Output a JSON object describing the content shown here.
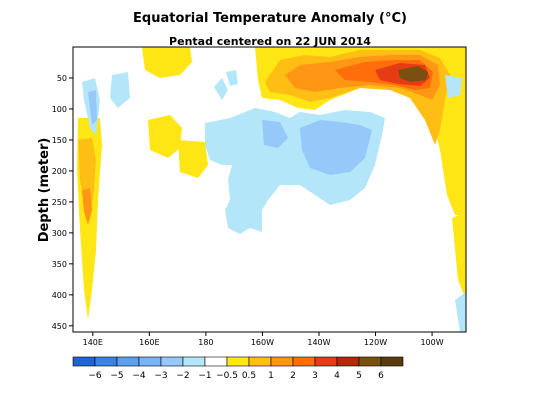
{
  "chart_data": {
    "type": "heatmap",
    "title": "Equatorial Temperature Anomaly (°C)",
    "subtitle": "Pentad centered on 22 JUN 2014",
    "xlabel": "",
    "ylabel": "Depth (meter)",
    "x_ticks": [
      "140E",
      "160E",
      "180",
      "160W",
      "140W",
      "120W",
      "100W"
    ],
    "x_tick_lon": [
      140,
      160,
      180,
      200,
      220,
      240,
      260
    ],
    "xlim": [
      133,
      272
    ],
    "y_ticks": [
      "50",
      "100",
      "150",
      "200",
      "250",
      "300",
      "350",
      "400",
      "450"
    ],
    "y_tick_values": [
      50,
      100,
      150,
      200,
      250,
      300,
      350,
      400,
      450
    ],
    "ylim": [
      0,
      460
    ],
    "y_reversed": true,
    "colorbar": {
      "labels": [
        "−6",
        "−5",
        "−4",
        "−3",
        "−2",
        "−1",
        "−0.5",
        "0.5",
        "1",
        "2",
        "3",
        "4",
        "5",
        "6"
      ],
      "colors": [
        "#1e64d2",
        "#3c82e6",
        "#5a9ff0",
        "#78b4f5",
        "#96c8fa",
        "#b4e6fa",
        "#ffffff",
        "#ffe614",
        "#ffbe14",
        "#ff9614",
        "#ff6e0a",
        "#e63c14",
        "#b4280a",
        "#7a5010",
        "#5a3c0a"
      ]
    },
    "features": [
      {
        "lon": 240,
        "depth": 50,
        "anomaly": 6
      },
      {
        "lon": 235,
        "depth": 60,
        "anomaly": 4
      },
      {
        "lon": 220,
        "depth": 65,
        "anomaly": 2
      },
      {
        "lon": 200,
        "depth": 80,
        "anomaly": 1
      },
      {
        "lon": 137,
        "depth": 180,
        "anomaly": 2
      },
      {
        "lon": 137,
        "depth": 260,
        "anomaly": 1
      },
      {
        "lon": 222,
        "depth": 160,
        "anomaly": -1
      },
      {
        "lon": 190,
        "depth": 150,
        "anomaly": -0.5
      },
      {
        "lon": 200,
        "depth": 220,
        "anomaly": -0.5
      },
      {
        "lon": 137,
        "depth": 100,
        "anomaly": -1
      }
    ]
  }
}
